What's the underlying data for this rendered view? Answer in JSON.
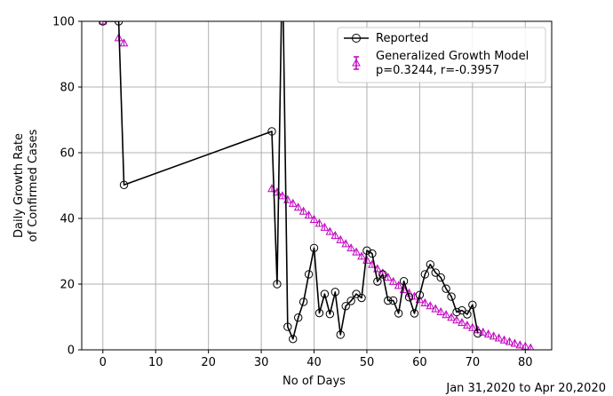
{
  "chart_data": {
    "type": "line",
    "xlabel": "No of Days",
    "ylabel_lines": [
      "Daily Growth Rate",
      "of Confirmed Cases"
    ],
    "corner_note": "Jan 31,2020 to Apr 20,2020",
    "xlim": [
      -4,
      85
    ],
    "ylim": [
      0,
      100
    ],
    "xticks": [
      0,
      10,
      20,
      30,
      40,
      50,
      60,
      70,
      80
    ],
    "yticks": [
      0,
      20,
      40,
      60,
      80,
      100
    ],
    "grid": true,
    "legend_position": "top-right",
    "series": [
      {
        "name": "Reported",
        "style": "line-circle",
        "color": "#000000",
        "x": [
          0,
          3,
          4,
          32,
          33,
          34,
          35,
          36,
          37,
          38,
          39,
          40,
          41,
          42,
          43,
          44,
          45,
          46,
          47,
          48,
          49,
          50,
          51,
          52,
          53,
          54,
          55,
          56,
          57,
          58,
          59,
          60,
          61,
          62,
          63,
          64,
          65,
          66,
          67,
          68,
          69,
          70,
          71
        ],
        "y": [
          100,
          100,
          50.2,
          66.5,
          20.0,
          120,
          7.0,
          3.3,
          9.8,
          14.6,
          23.0,
          31.0,
          11.2,
          17.0,
          10.9,
          17.6,
          4.6,
          13.3,
          14.9,
          17.0,
          15.8,
          30.2,
          29.3,
          20.8,
          23.0,
          15.0,
          15.0,
          11.1,
          20.9,
          16.0,
          11.1,
          16.7,
          23.0,
          26.0,
          23.5,
          22.0,
          18.6,
          16.2,
          11.5,
          12.0,
          10.8,
          13.7,
          5.0
        ]
      },
      {
        "name_lines": [
          "Generalized Growth Model",
          "p=0.3244, r=-0.3957"
        ],
        "style": "triangle-errorbar",
        "color": "#c000c0",
        "x": [
          0,
          3,
          4,
          32,
          33,
          34,
          35,
          36,
          37,
          38,
          39,
          40,
          41,
          42,
          43,
          44,
          45,
          46,
          47,
          48,
          49,
          50,
          51,
          52,
          53,
          54,
          55,
          56,
          57,
          58,
          59,
          60,
          61,
          62,
          63,
          64,
          65,
          66,
          67,
          68,
          69,
          70,
          71,
          72,
          73,
          74,
          75,
          76,
          77,
          78,
          79,
          80,
          81
        ],
        "y": [
          100,
          94.9,
          93.3,
          49.0,
          47.9,
          46.8,
          45.6,
          44.5,
          43.3,
          42.1,
          40.9,
          39.6,
          38.4,
          37.2,
          35.9,
          34.7,
          33.4,
          32.2,
          30.9,
          29.7,
          28.4,
          27.2,
          25.9,
          24.6,
          23.3,
          22.0,
          20.7,
          19.5,
          18.2,
          17.2,
          16.2,
          15.2,
          14.2,
          13.3,
          12.4,
          11.5,
          10.6,
          9.8,
          9.0,
          8.2,
          7.4,
          6.7,
          6.0,
          5.3,
          4.7,
          4.1,
          3.5,
          2.9,
          2.4,
          1.9,
          1.4,
          1.0,
          0.5
        ]
      }
    ]
  }
}
